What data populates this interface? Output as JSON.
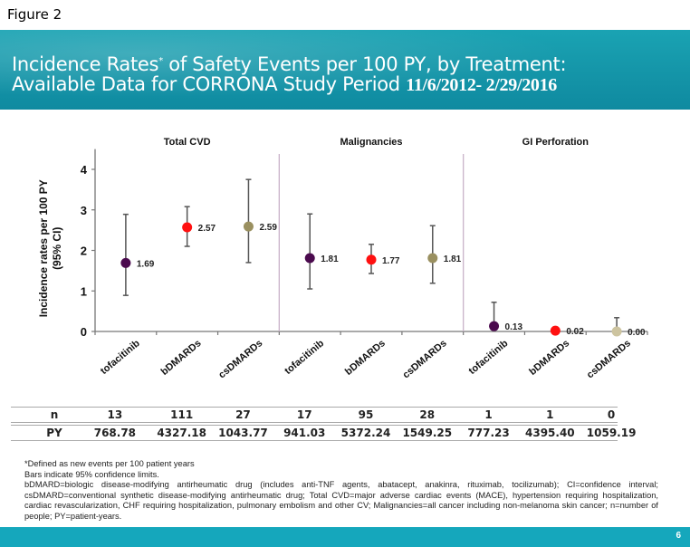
{
  "figure_label": "Figure 2",
  "title": {
    "line1_part1": "Incidence Rates",
    "line1_sup": "*",
    "line1_part2": " of Safety Events per 100 PY, by Treatment:",
    "line2_part1": "Available Data for CORRONA Study Period ",
    "line2_dates": "11/6/2012- 2/29/2016"
  },
  "chart_data": {
    "type": "scatter",
    "subtype": "point-with-error-bars",
    "ylabel": "Incidence rates per 100 PY (95% CI)",
    "ylim": [
      0,
      4.5
    ],
    "yticks": [
      0,
      1,
      2,
      3,
      4
    ],
    "grid": false,
    "colors": {
      "tofacitinib": "#4b0a4e",
      "bDMARDs": "#ff1010",
      "csDMARDs": "#9a9060",
      "csDMARDs_gi": "#cdc4a0"
    },
    "panels": [
      {
        "title": "Total CVD",
        "categories": [
          "tofacitinib",
          "bDMARDs",
          "csDMARDs"
        ],
        "values": [
          1.69,
          2.57,
          2.59
        ],
        "labels": [
          "1.69",
          "2.57",
          "2.59"
        ],
        "ci_lower": [
          0.89,
          2.1,
          1.7
        ],
        "ci_upper": [
          2.89,
          3.08,
          3.75
        ]
      },
      {
        "title": "Malignancies",
        "categories": [
          "tofacitinib",
          "bDMARDs",
          "csDMARDs"
        ],
        "values": [
          1.81,
          1.77,
          1.81
        ],
        "labels": [
          "1.81",
          "1.77",
          "1.81"
        ],
        "ci_lower": [
          1.05,
          1.43,
          1.19
        ],
        "ci_upper": [
          2.9,
          2.15,
          2.61
        ]
      },
      {
        "title": "GI Perforation",
        "categories": [
          "tofacitinib",
          "bDMARDs",
          "csDMARDs"
        ],
        "values": [
          0.13,
          0.02,
          0.0
        ],
        "labels": [
          "0.13",
          "0.02",
          "0.00"
        ],
        "ci_lower": [
          0.13,
          0.02,
          0.0
        ],
        "ci_upper": [
          0.72,
          0.02,
          0.34
        ]
      }
    ]
  },
  "table": {
    "rows": [
      {
        "label": "n",
        "values": [
          "13",
          "111",
          "27",
          "17",
          "95",
          "28",
          "1",
          "1",
          "0"
        ]
      },
      {
        "label": "PY",
        "values": [
          "768.78",
          "4327.18",
          "1043.77",
          "941.03",
          "5372.24",
          "1549.25",
          "777.23",
          "4395.40",
          "1059.19"
        ]
      }
    ]
  },
  "footnotes": [
    "*Defined as new events per 100 patient years",
    "Bars indicate 95% confidence limits.",
    "bDMARD=biologic disease-modifying antirheumatic drug (includes anti-TNF agents, abatacept, anakinra, rituximab, tocilizumab); CI=confidence interval; csDMARD=conventional synthetic disease-modifying antirheumatic drug; Total CVD=major adverse cardiac events (MACE), hypertension requiring hospitalization, cardiac revascularization, CHF requiring hospitalization, pulmonary embolism and other CV; Malignancies=all cancer including non-melanoma skin cancer; n=number of people; PY=patient-years."
  ],
  "page_number": "6"
}
